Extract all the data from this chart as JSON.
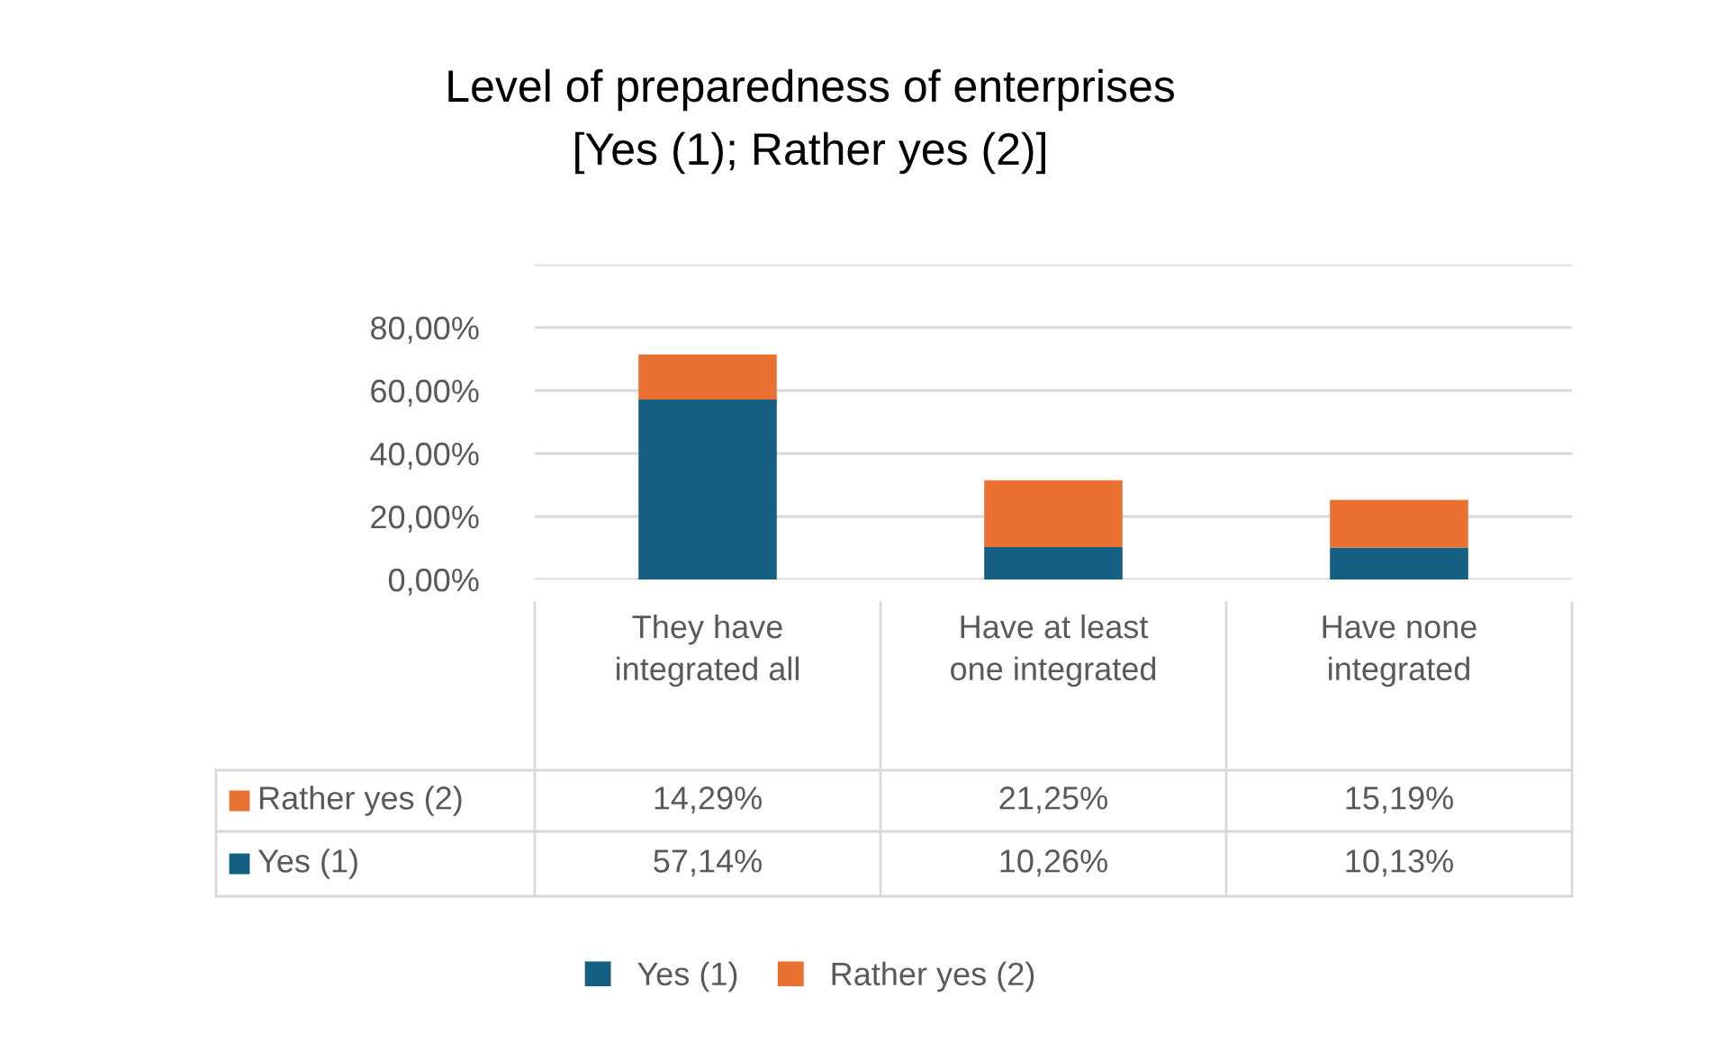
{
  "chart_data": {
    "type": "bar",
    "stacked": true,
    "title": "Level of preparedness of enterprises",
    "subtitle": "[Yes (1); Rather yes (2)]",
    "categories": [
      "They have integrated all",
      "Have at least one integrated",
      "Have none integrated"
    ],
    "series": [
      {
        "name": "Yes (1)",
        "color": "#156082",
        "values": [
          57.14,
          10.26,
          10.13
        ],
        "value_labels": [
          "57,14%",
          "10,26%",
          "10,13%"
        ]
      },
      {
        "name": "Rather yes (2)",
        "color": "#e97132",
        "values": [
          14.29,
          21.25,
          15.19
        ],
        "value_labels": [
          "14,29%",
          "21,25%",
          "15,19%"
        ]
      }
    ],
    "ylim": [
      0,
      100
    ],
    "yticks": [
      {
        "value": 0,
        "label": "0,00%"
      },
      {
        "value": 20,
        "label": "20,00%"
      },
      {
        "value": 40,
        "label": "40,00%"
      },
      {
        "value": 60,
        "label": "60,00%"
      },
      {
        "value": 80,
        "label": "80,00%"
      },
      {
        "value": 100,
        "label": null
      }
    ],
    "grid": "y",
    "legend": "bottom"
  }
}
